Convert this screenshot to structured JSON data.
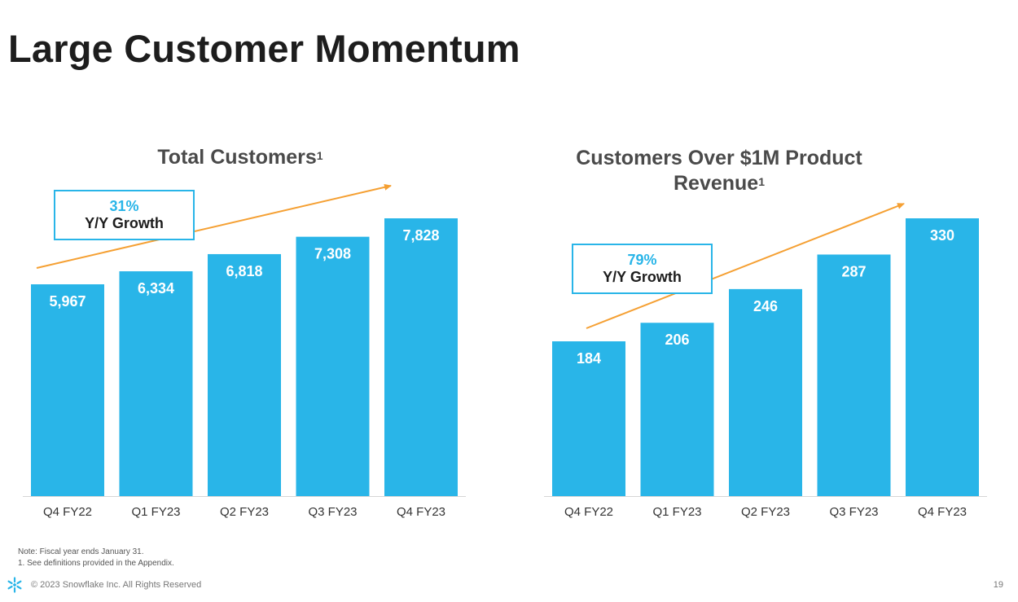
{
  "slide": {
    "title": "Large Customer Momentum",
    "note": "Note: Fiscal year ends January 31.",
    "footnote": "1.  See definitions provided in the Appendix.",
    "copyright": "© 2023 Snowflake Inc. All Rights Reserved",
    "page_number": "19"
  },
  "colors": {
    "bar": "#29b5e8",
    "arrow": "#f5a033",
    "axis": "#d6d6d6",
    "brand": "#29b5e8"
  },
  "icons": {
    "logo": "snowflake-logo-icon"
  },
  "chart_data": [
    {
      "type": "bar",
      "title": "Total Customers",
      "title_superscript": "1",
      "categories": [
        "Q4 FY22",
        "Q1 FY23",
        "Q2 FY23",
        "Q3 FY23",
        "Q4 FY23"
      ],
      "values": [
        5967,
        6334,
        6818,
        7308,
        7828
      ],
      "value_labels": [
        "5,967",
        "6,334",
        "6,818",
        "7,308",
        "7,828"
      ],
      "growth": {
        "percent": "31%",
        "label": "Y/Y Growth"
      },
      "xlabel": "",
      "ylabel": "",
      "grid": false
    },
    {
      "type": "bar",
      "title": "Customers Over $1M Product Revenue",
      "title_superscript": "1",
      "categories": [
        "Q4 FY22",
        "Q1 FY23",
        "Q2 FY23",
        "Q3 FY23",
        "Q4 FY23"
      ],
      "values": [
        184,
        206,
        246,
        287,
        330
      ],
      "value_labels": [
        "184",
        "206",
        "246",
        "287",
        "330"
      ],
      "growth": {
        "percent": "79%",
        "label": "Y/Y Growth"
      },
      "xlabel": "",
      "ylabel": "",
      "grid": false
    }
  ]
}
